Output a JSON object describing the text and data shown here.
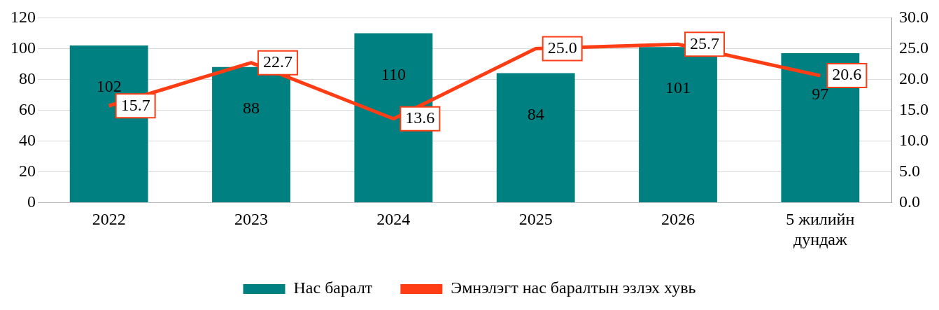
{
  "chart_data": {
    "type": "bar",
    "categories": [
      "2022",
      "2023",
      "2024",
      "2025",
      "2026",
      "5 жилийн дундаж"
    ],
    "series": [
      {
        "name": "Нас баралт",
        "color": "#008080",
        "values": [
          102,
          88,
          110,
          84,
          101,
          97
        ],
        "value_labels": [
          "102",
          "88",
          "110",
          "84",
          "101",
          "97"
        ]
      },
      {
        "name": "Эмнэлэгт нас баралтын эзлэх хувь",
        "type": "line",
        "axis": "y2",
        "color": "#ff3d14",
        "values": [
          15.7,
          22.7,
          13.6,
          25.0,
          25.7,
          20.6
        ],
        "value_labels": [
          "15.7",
          "22.7",
          "13.6",
          "25.0",
          "25.7",
          "20.6"
        ]
      }
    ],
    "ylim": [
      0,
      120
    ],
    "yticks": [
      0,
      20,
      40,
      60,
      80,
      100,
      120
    ],
    "y2lim": [
      0,
      30
    ],
    "y2ticks": [
      {
        "value": 0,
        "label": "0.0"
      },
      {
        "value": 5,
        "label": "5.0"
      },
      {
        "value": 10,
        "label": "10.0"
      },
      {
        "value": 15,
        "label": "15.0"
      },
      {
        "value": 20,
        "label": "20.0"
      },
      {
        "value": 25,
        "label": "25.0"
      },
      {
        "value": 30,
        "label": "30.0"
      }
    ],
    "grid": "y",
    "legend": "bottom",
    "marker": "none",
    "line_style": "solid"
  }
}
